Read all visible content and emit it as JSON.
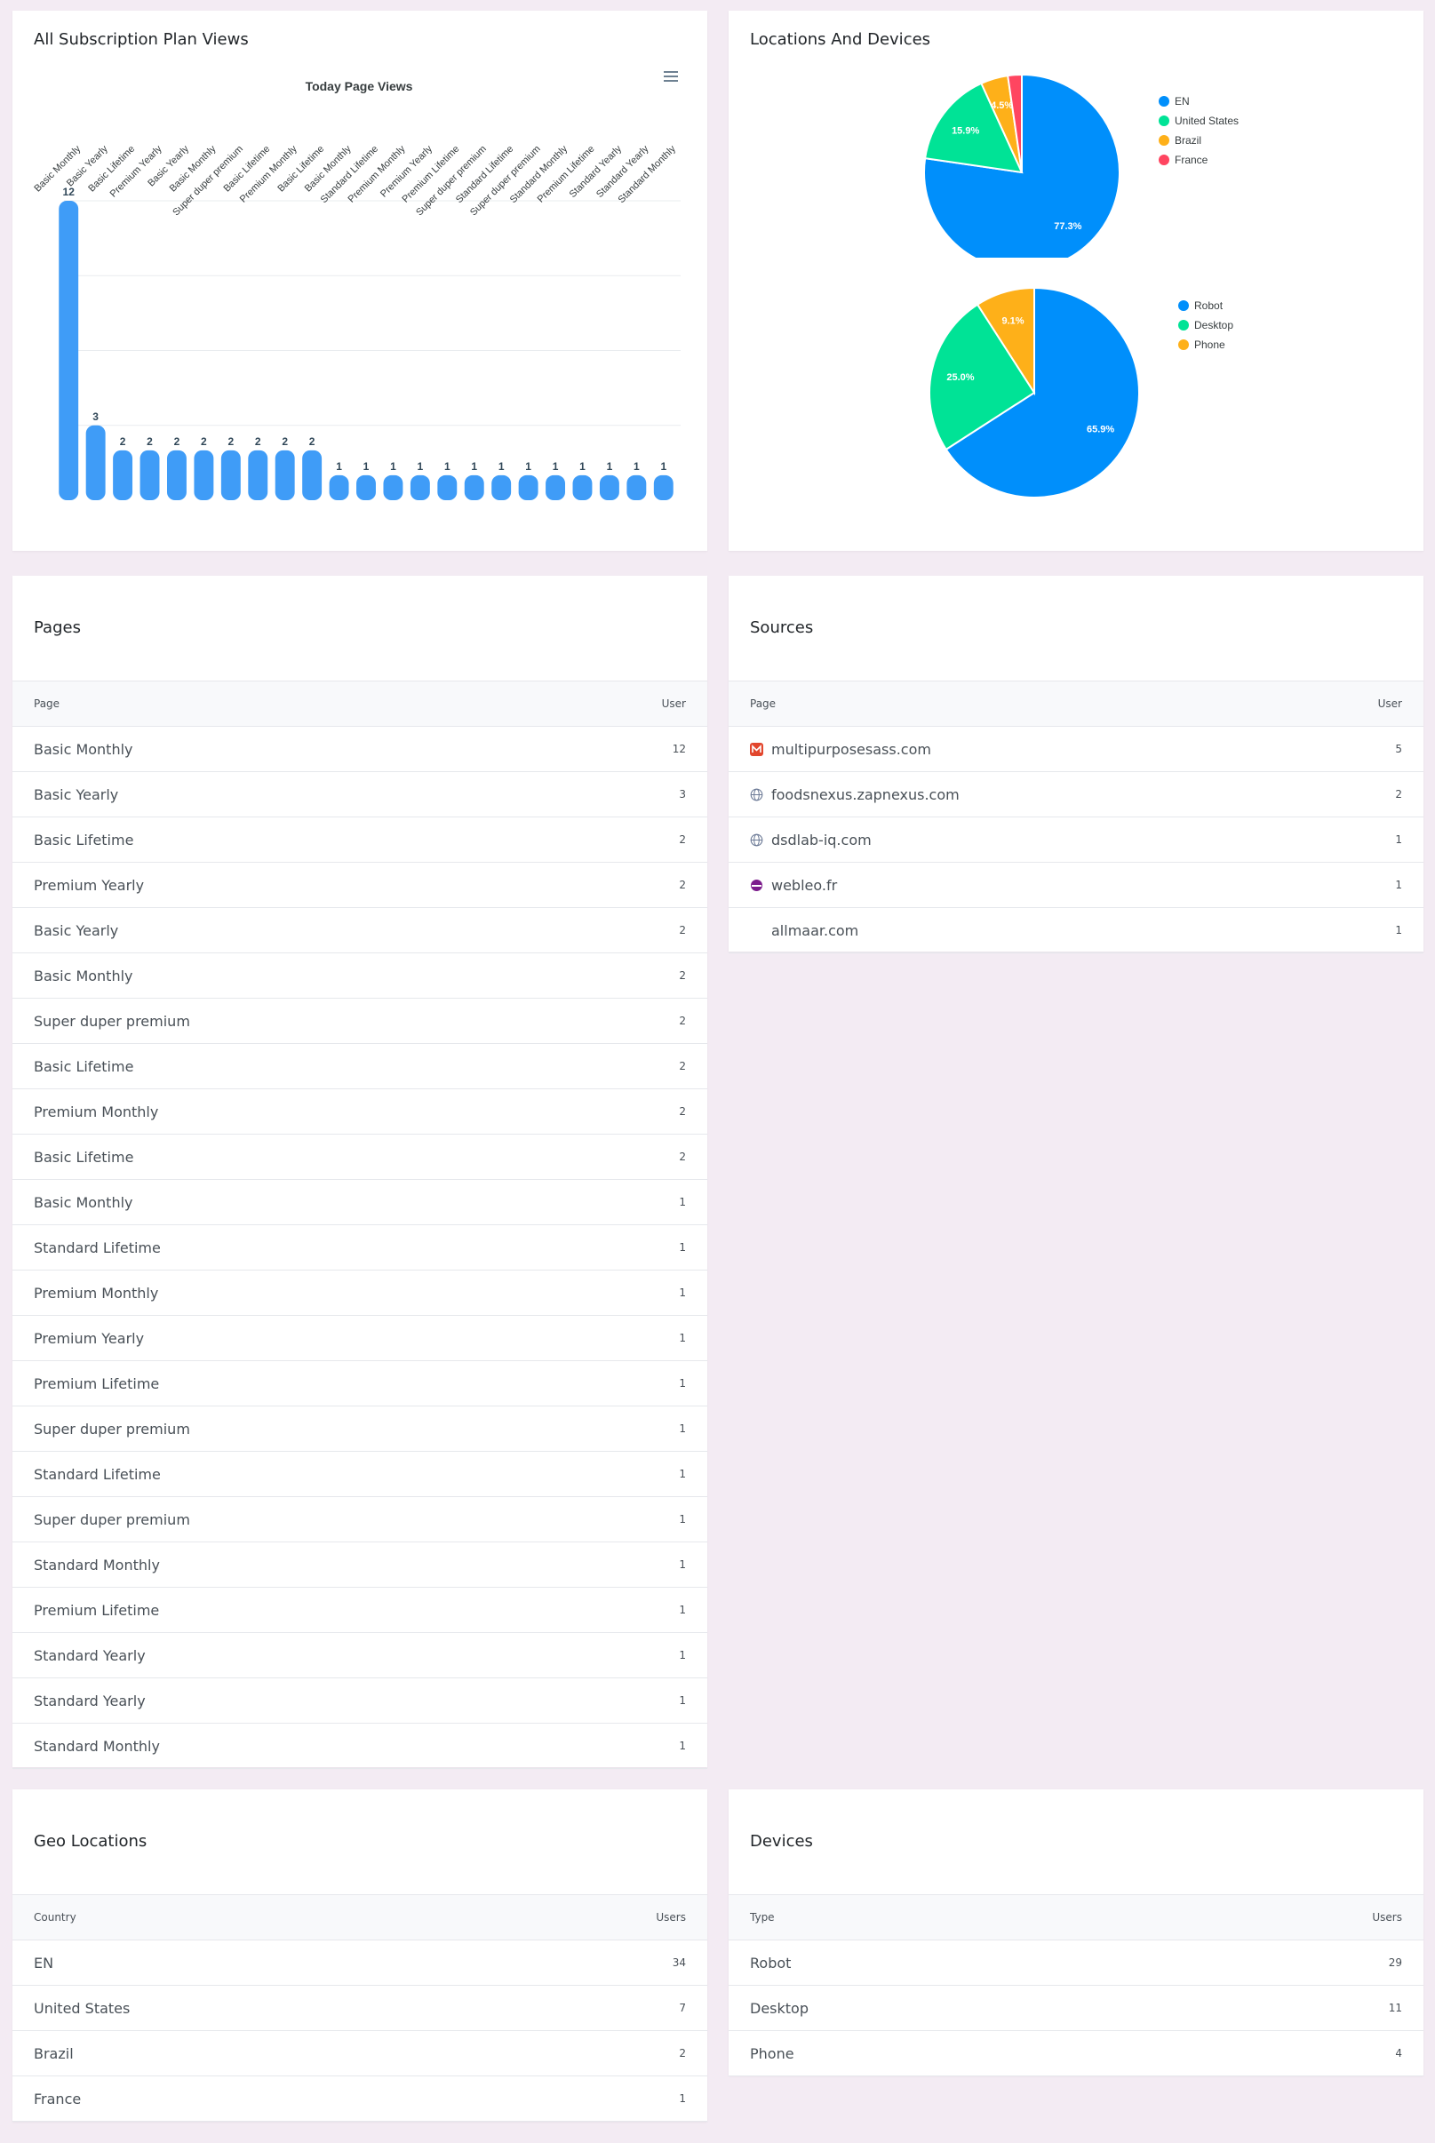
{
  "subscription_card": {
    "title": "All Subscription Plan Views",
    "menu_icon": "hamburger-menu-icon"
  },
  "chart_data": [
    {
      "type": "bar",
      "title": "Today Page Views",
      "categories": [
        "Basic Monthly",
        "Basic Yearly",
        "Basic Lifetime",
        "Premium Yearly",
        "Basic Yearly",
        "Basic Monthly",
        "Super duper premium",
        "Basic Lifetime",
        "Premium Monthly",
        "Basic Lifetime",
        "Basic Monthly",
        "Standard Lifetime",
        "Premium Monthly",
        "Premium Yearly",
        "Premium Lifetime",
        "Super duper premium",
        "Standard Lifetime",
        "Super duper premium",
        "Standard Monthly",
        "Premium Lifetime",
        "Standard Yearly",
        "Standard Yearly",
        "Standard Monthly"
      ],
      "values": [
        12,
        3,
        2,
        2,
        2,
        2,
        2,
        2,
        2,
        2,
        1,
        1,
        1,
        1,
        1,
        1,
        1,
        1,
        1,
        1,
        1,
        1,
        1
      ],
      "ylim": [
        0,
        12
      ],
      "grid": true,
      "color": "#3f9cf7"
    },
    {
      "type": "pie",
      "labels": [
        "EN",
        "United States",
        "Brazil",
        "France"
      ],
      "values": [
        77.3,
        15.9,
        4.5,
        2.3
      ],
      "colors": [
        "#008ffb",
        "#00e396",
        "#feb019",
        "#ff4560"
      ],
      "legend": "right"
    },
    {
      "type": "pie",
      "labels": [
        "Robot",
        "Desktop",
        "Phone"
      ],
      "values": [
        65.9,
        25.0,
        9.1
      ],
      "colors": [
        "#008ffb",
        "#00e396",
        "#feb019"
      ],
      "legend": "right"
    }
  ],
  "locations_card": {
    "title": "Locations And Devices"
  },
  "pages_card": {
    "title": "Pages",
    "col_page": "Page",
    "col_user": "User",
    "rows": [
      {
        "name": "Basic Monthly",
        "value": "12"
      },
      {
        "name": "Basic Yearly",
        "value": "3"
      },
      {
        "name": "Basic Lifetime",
        "value": "2"
      },
      {
        "name": "Premium Yearly",
        "value": "2"
      },
      {
        "name": "Basic Yearly",
        "value": "2"
      },
      {
        "name": "Basic Monthly",
        "value": "2"
      },
      {
        "name": "Super duper premium",
        "value": "2"
      },
      {
        "name": "Basic Lifetime",
        "value": "2"
      },
      {
        "name": "Premium Monthly",
        "value": "2"
      },
      {
        "name": "Basic Lifetime",
        "value": "2"
      },
      {
        "name": "Basic Monthly",
        "value": "1"
      },
      {
        "name": "Standard Lifetime",
        "value": "1"
      },
      {
        "name": "Premium Monthly",
        "value": "1"
      },
      {
        "name": "Premium Yearly",
        "value": "1"
      },
      {
        "name": "Premium Lifetime",
        "value": "1"
      },
      {
        "name": "Super duper premium",
        "value": "1"
      },
      {
        "name": "Standard Lifetime",
        "value": "1"
      },
      {
        "name": "Super duper premium",
        "value": "1"
      },
      {
        "name": "Standard Monthly",
        "value": "1"
      },
      {
        "name": "Premium Lifetime",
        "value": "1"
      },
      {
        "name": "Standard Yearly",
        "value": "1"
      },
      {
        "name": "Standard Yearly",
        "value": "1"
      },
      {
        "name": "Standard Monthly",
        "value": "1"
      }
    ]
  },
  "sources_card": {
    "title": "Sources",
    "col_page": "Page",
    "col_user": "User",
    "rows": [
      {
        "name": "multipurposesass.com",
        "value": "5",
        "icon": "brand-m-icon"
      },
      {
        "name": "foodsnexus.zapnexus.com",
        "value": "2",
        "icon": "globe-icon"
      },
      {
        "name": "dsdlab-iq.com",
        "value": "1",
        "icon": "globe-icon"
      },
      {
        "name": "webleo.fr",
        "value": "1",
        "icon": "webleo-logo-icon"
      },
      {
        "name": "allmaar.com",
        "value": "1",
        "icon": ""
      }
    ]
  },
  "geo_card": {
    "title": "Geo Locations",
    "col_country": "Country",
    "col_users": "Users",
    "rows": [
      {
        "name": "EN",
        "value": "34"
      },
      {
        "name": "United States",
        "value": "7"
      },
      {
        "name": "Brazil",
        "value": "2"
      },
      {
        "name": "France",
        "value": "1"
      }
    ]
  },
  "devices_card": {
    "title": "Devices",
    "col_type": "Type",
    "col_users": "Users",
    "rows": [
      {
        "name": "Robot",
        "value": "29"
      },
      {
        "name": "Desktop",
        "value": "11"
      },
      {
        "name": "Phone",
        "value": "4"
      }
    ]
  }
}
